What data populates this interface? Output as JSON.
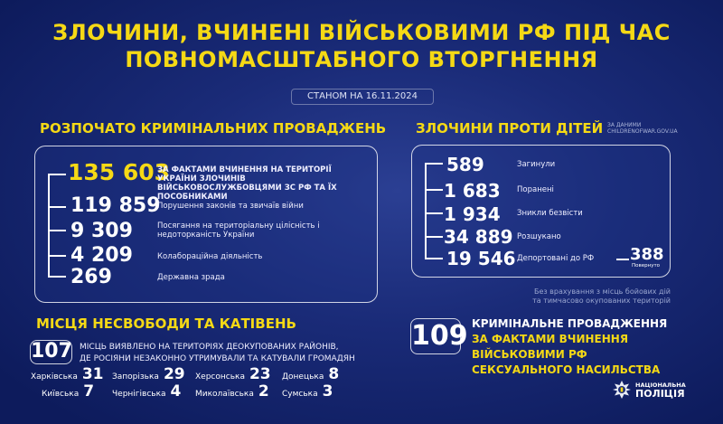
{
  "header": {
    "title_line1": "ЗЛОЧИНИ, ВЧИНЕНІ ВІЙСЬКОВИМИ РФ ПІД ЧАС",
    "title_line2": "ПОВНОМАСШТАБНОГО ВТОРГНЕННЯ",
    "date": "СТАНОМ НА 16.11.2024"
  },
  "colors": {
    "accent": "#f5d915",
    "background": "#1a2b78"
  },
  "proceedings": {
    "heading": "РОЗПОЧАТО КРИМІНАЛЬНИХ ПРОВАДЖЕНЬ",
    "items": [
      {
        "value": "135 603",
        "label": "ЗА ФАКТАМИ ВЧИНЕННЯ НА ТЕРИТОРІЇ УКРАЇНИ ЗЛОЧИНІВ ВІЙСЬКОВОСЛУЖБОВЦЯМИ ЗС РФ ТА ЇХ ПОСОБНИКАМИ"
      },
      {
        "value": "119 859",
        "label": "Порушення законів та звичаїв війни"
      },
      {
        "value": "9 309",
        "label": "Посягання на територіальну цілісність і недоторканість України"
      },
      {
        "value": "4 209",
        "label": "Колабораційна діяльність"
      },
      {
        "value": "269",
        "label": "Державна зрада"
      }
    ]
  },
  "children": {
    "heading": "ЗЛОЧИНИ ПРОТИ ДІТЕЙ",
    "source_line1": "ЗА ДАНИМИ",
    "source_line2": "CHILDRENOFWAR.GOV.UA",
    "items": [
      {
        "value": "589",
        "label": "Загинули"
      },
      {
        "value": "1 683",
        "label": "Поранені"
      },
      {
        "value": "1 934",
        "label": "Зникли безвісти"
      },
      {
        "value": "34 889",
        "label": "Розшукано"
      },
      {
        "value": "19 546",
        "label": "Депортовані до РФ"
      }
    ],
    "returned_value": "388",
    "returned_label": "Повернуто",
    "footnote_line1": "Без врахування з місць бойових дій",
    "footnote_line2": "та тимчасово окупованих територій"
  },
  "torture": {
    "heading": "МІСЦЯ НЕСВОБОДИ ТА КАТІВЕНЬ",
    "count": "107",
    "text_line1": "МІСЦЬ ВИЯВЛЕНО НА ТЕРИТОРІЯХ ДЕОКУПОВАНИХ РАЙОНІВ,",
    "text_line2": "ДЕ РОСІЯНИ НЕЗАКОННО УТРИМУВАЛИ ТА КАТУВАЛИ ГРОМАДЯН",
    "regions": [
      {
        "name": "Харківська",
        "value": "31"
      },
      {
        "name": "Запорізька",
        "value": "29"
      },
      {
        "name": "Херсонська",
        "value": "23"
      },
      {
        "name": "Донецька",
        "value": "8"
      },
      {
        "name": "Київська",
        "value": "7"
      },
      {
        "name": "Чернігівська",
        "value": "4"
      },
      {
        "name": "Миколаївська",
        "value": "2"
      },
      {
        "name": "Сумська",
        "value": "3"
      }
    ]
  },
  "sexual": {
    "count": "109",
    "line1": "КРИМІНАЛЬНЕ ПРОВАДЖЕННЯ",
    "line2": "ЗА ФАКТАМИ ВЧИНЕННЯ",
    "line3": "ВІЙСЬКОВИМИ РФ",
    "line4": "СЕКСУАЛЬНОГО НАСИЛЬСТВА"
  },
  "logo": {
    "line1": "НАЦІОНАЛЬНА",
    "line2": "ПОЛІЦІЯ"
  }
}
